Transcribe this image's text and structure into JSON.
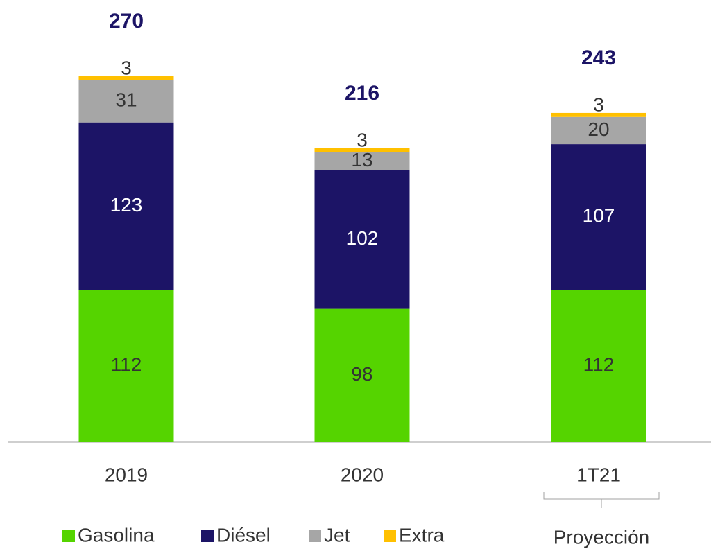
{
  "chart_data": {
    "type": "stacked_bar",
    "categories": [
      "2019",
      "2020",
      "1T21"
    ],
    "series": [
      {
        "name": "Gasolina",
        "color": "#55d400",
        "values": [
          112,
          98,
          112
        ]
      },
      {
        "name": "Diésel",
        "color": "#1c1466",
        "values": [
          123,
          102,
          107
        ]
      },
      {
        "name": "Jet",
        "color": "#a6a6a6",
        "values": [
          31,
          13,
          20
        ]
      },
      {
        "name": "Extra",
        "color": "#ffc000",
        "values": [
          3,
          3,
          3
        ]
      }
    ],
    "totals": [
      270,
      216,
      243
    ],
    "annotation": "Proyección",
    "ylim": [
      0,
      325
    ],
    "legend": "bottom"
  }
}
